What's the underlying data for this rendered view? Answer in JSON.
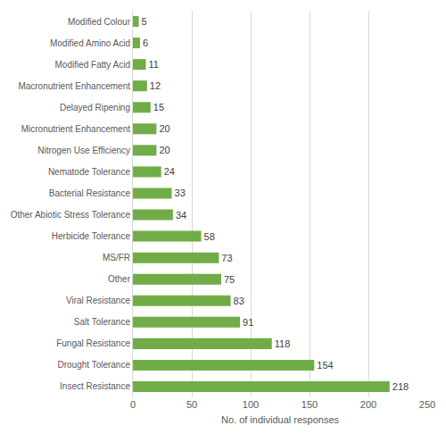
{
  "chart_data": {
    "type": "bar",
    "orientation": "horizontal",
    "categories": [
      "Modified Colour",
      "Modified Amino Acid",
      "Modified Fatty Acid",
      "Macronutrient Enhancement",
      "Delayed Ripening",
      "Micronutrient Enhancement",
      "Nitrogen Use Efficiency",
      "Nematode Tolerance",
      "Bacterial Resistance",
      "Other Abiotic Stress Tolerance",
      "Herbicide Tolerance",
      "MS/FR",
      "Other",
      "Viral Resistance",
      "Salt Tolerance",
      "Fungal Resistance",
      "Drought Tolerance",
      "Insect Resistance"
    ],
    "values": [
      5,
      6,
      11,
      12,
      15,
      20,
      20,
      24,
      33,
      34,
      58,
      73,
      75,
      83,
      91,
      118,
      154,
      218
    ],
    "color": "#70ad47",
    "x_label": "No. of individual responses",
    "xlim": [
      0,
      250
    ],
    "xticks": [
      0,
      50,
      100,
      150,
      200,
      250
    ],
    "grid": true,
    "data_labels": true
  }
}
